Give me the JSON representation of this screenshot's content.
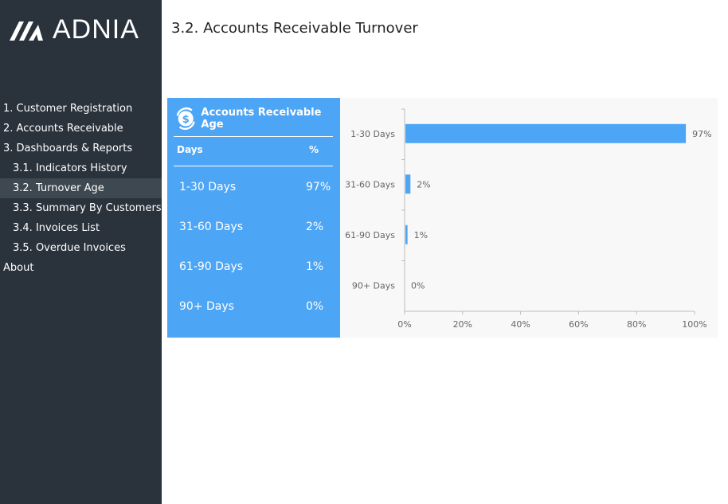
{
  "brand": {
    "logo_text": "ADNIA"
  },
  "sidebar": {
    "items": [
      {
        "label": "1. Customer Registration",
        "level": "top"
      },
      {
        "label": "2. Accounts Receivable",
        "level": "top"
      },
      {
        "label": "3. Dashboards & Reports",
        "level": "top"
      },
      {
        "label": "3.1. Indicators History",
        "level": "sub"
      },
      {
        "label": "3.2. Turnover Age",
        "level": "sub",
        "active": true
      },
      {
        "label": "3.3. Summary By Customers",
        "level": "sub"
      },
      {
        "label": "3.4. Invoices List",
        "level": "sub"
      },
      {
        "label": "3.5. Overdue Invoices",
        "level": "sub"
      },
      {
        "label": "About",
        "level": "top"
      }
    ]
  },
  "page": {
    "title": "3.2. Accounts Receivable Turnover"
  },
  "table": {
    "title": "Accounts Receivable Age",
    "icon": "dollar-cycle-icon",
    "col_days": "Days",
    "col_pct": "%",
    "rows": [
      {
        "days": "1-30 Days",
        "pct": "97%"
      },
      {
        "days": "31-60 Days",
        "pct": "2%"
      },
      {
        "days": "61-90 Days",
        "pct": "1%"
      },
      {
        "days": "90+ Days",
        "pct": "0%"
      }
    ]
  },
  "colors": {
    "sidebar": "#2a323b",
    "accent": "#4da5f5"
  },
  "chart_data": {
    "type": "bar",
    "orientation": "horizontal",
    "categories": [
      "1-30 Days",
      "31-60 Days",
      "61-90 Days",
      "90+ Days"
    ],
    "values": [
      97,
      2,
      1,
      0
    ],
    "data_labels": [
      "97%",
      "2%",
      "1%",
      "0%"
    ],
    "xlim": [
      0,
      100
    ],
    "xticks": [
      "0%",
      "20%",
      "40%",
      "60%",
      "80%",
      "100%"
    ],
    "grid": false
  }
}
